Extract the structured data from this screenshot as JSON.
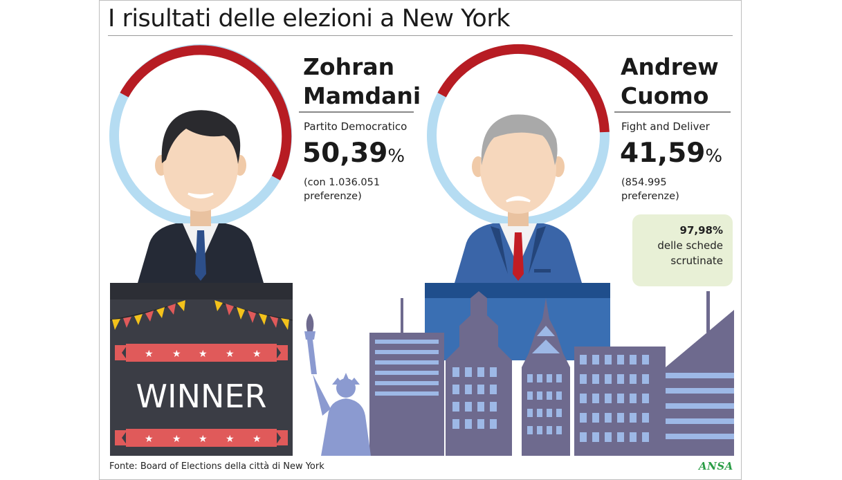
{
  "title": "I risultati delle elezioni a New York",
  "candidates": [
    {
      "name_line1": "Zohran",
      "name_line2": "Mamdani",
      "party": "Partito Democratico",
      "percent": "50,39",
      "percent_sign": "%",
      "votes_line1": "(con 1.036.051",
      "votes_line2": "preferenze)",
      "share": 50.39
    },
    {
      "name_line1": "Andrew",
      "name_line2": "Cuomo",
      "party": "Fight and Deliver",
      "percent": "41,59",
      "percent_sign": "%",
      "votes_line1": "(854.995",
      "votes_line2": "preferenze)",
      "share": 41.59
    }
  ],
  "winner_label": "WINNER",
  "scrutiny": {
    "value": "97,98%",
    "line2": "delle schede",
    "line3": "scrutinate"
  },
  "source": "Fonte: Board of Elections della città di New York",
  "logo": "ANSA",
  "colors": {
    "ring_red": "#b71c23",
    "ring_blue": "#b5dcf2",
    "podium_dark": "#3b3d45",
    "podium_blue": "#1f4e8c",
    "banner_red": "#e05a5a",
    "bunting_yellow": "#f3c21b",
    "city_purple": "#6e6a8e",
    "city_window": "#9db8e6",
    "suit_dark": "#252a36",
    "suit_blue": "#3a65a8",
    "skin": "#f6d7bc",
    "scrutiny_bg": "#e8f0d6",
    "ansa_green": "#2a9d46"
  }
}
